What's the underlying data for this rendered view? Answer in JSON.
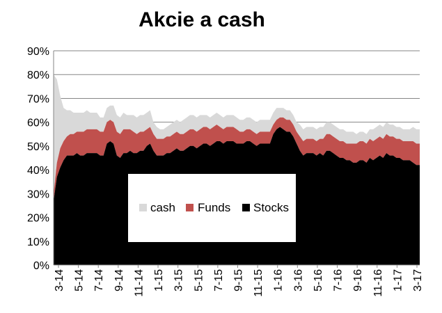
{
  "chart_data": {
    "type": "area",
    "stacked": true,
    "title": "Akcie a cash",
    "xlabel": "",
    "ylabel": "",
    "ylim": [
      0,
      90
    ],
    "y_ticks": [
      "0%",
      "10%",
      "20%",
      "30%",
      "40%",
      "50%",
      "60%",
      "70%",
      "80%",
      "90%"
    ],
    "x_ticks": [
      "3-14",
      "5-14",
      "7-14",
      "9-14",
      "11-14",
      "1-15",
      "3-15",
      "5-15",
      "7-15",
      "9-15",
      "11-15",
      "1-16",
      "3-16",
      "5-16",
      "7-16",
      "9-16",
      "11-16",
      "1-17",
      "3-17"
    ],
    "grid": "horizontal",
    "legend_placement": "center",
    "colors": {
      "cash": "#d9d9d9",
      "Funds": "#c0504d",
      "Stocks": "#000000"
    },
    "series": [
      {
        "name": "Stocks",
        "values": [
          27,
          37,
          41,
          44,
          46,
          46,
          46,
          47,
          46,
          46,
          47,
          47,
          47,
          47,
          46,
          46,
          51,
          52,
          51,
          46,
          45,
          47,
          47,
          48,
          47,
          47,
          48,
          48,
          50,
          51,
          48,
          46,
          46,
          46,
          47,
          47,
          48,
          49,
          48,
          48,
          49,
          50,
          50,
          49,
          50,
          51,
          51,
          50,
          51,
          52,
          52,
          51,
          52,
          52,
          52,
          51,
          51,
          51,
          52,
          52,
          51,
          50,
          51,
          51,
          51,
          51,
          55,
          57,
          58,
          57,
          56,
          56,
          54,
          51,
          48,
          46,
          47,
          47,
          47,
          46,
          47,
          46,
          48,
          48,
          47,
          46,
          45,
          45,
          44,
          44,
          43,
          43,
          44,
          44,
          43,
          45,
          44,
          45,
          46,
          45,
          47,
          46,
          46,
          45,
          45,
          44,
          44,
          44,
          43,
          42,
          42
        ]
      },
      {
        "name": "Funds",
        "values": [
          3,
          6,
          8,
          8,
          8,
          9,
          9,
          9,
          10,
          10,
          10,
          10,
          10,
          10,
          10,
          10,
          9,
          9,
          9,
          10,
          10,
          10,
          10,
          9,
          9,
          8,
          8,
          8,
          7,
          7,
          7,
          7,
          7,
          7,
          7,
          7,
          7,
          7,
          7,
          7,
          7,
          7,
          7,
          7,
          7,
          7,
          7,
          7,
          7,
          7,
          6,
          6,
          6,
          6,
          6,
          6,
          5,
          5,
          5,
          5,
          5,
          5,
          5,
          5,
          5,
          5,
          4,
          4,
          4,
          5,
          5,
          5,
          5,
          5,
          6,
          6,
          6,
          6,
          6,
          6,
          6,
          7,
          7,
          7,
          7,
          7,
          7,
          7,
          7,
          7,
          8,
          8,
          8,
          8,
          8,
          8,
          8,
          8,
          8,
          8,
          8,
          8,
          8,
          8,
          8,
          8,
          8,
          8,
          9,
          9,
          9
        ]
      },
      {
        "name": "cash",
        "values": [
          50,
          35,
          22,
          14,
          11,
          10,
          9,
          8,
          8,
          8,
          8,
          7,
          7,
          7,
          6,
          6,
          6,
          6,
          7,
          7,
          7,
          7,
          6,
          6,
          7,
          7,
          7,
          7,
          7,
          7,
          5,
          5,
          4,
          4,
          4,
          5,
          5,
          5,
          5,
          6,
          6,
          6,
          6,
          6,
          6,
          5,
          5,
          5,
          5,
          5,
          5,
          5,
          5,
          5,
          5,
          5,
          5,
          5,
          5,
          5,
          5,
          5,
          5,
          5,
          5,
          5,
          5,
          5,
          4,
          4,
          4,
          4,
          4,
          4,
          5,
          5,
          5,
          5,
          5,
          5,
          5,
          5,
          5,
          5,
          5,
          5,
          5,
          5,
          5,
          5,
          5,
          4,
          4,
          4,
          4,
          4,
          5,
          5,
          5,
          5,
          5,
          5,
          5,
          5,
          5,
          5,
          5,
          5,
          6,
          6,
          6
        ]
      }
    ]
  }
}
